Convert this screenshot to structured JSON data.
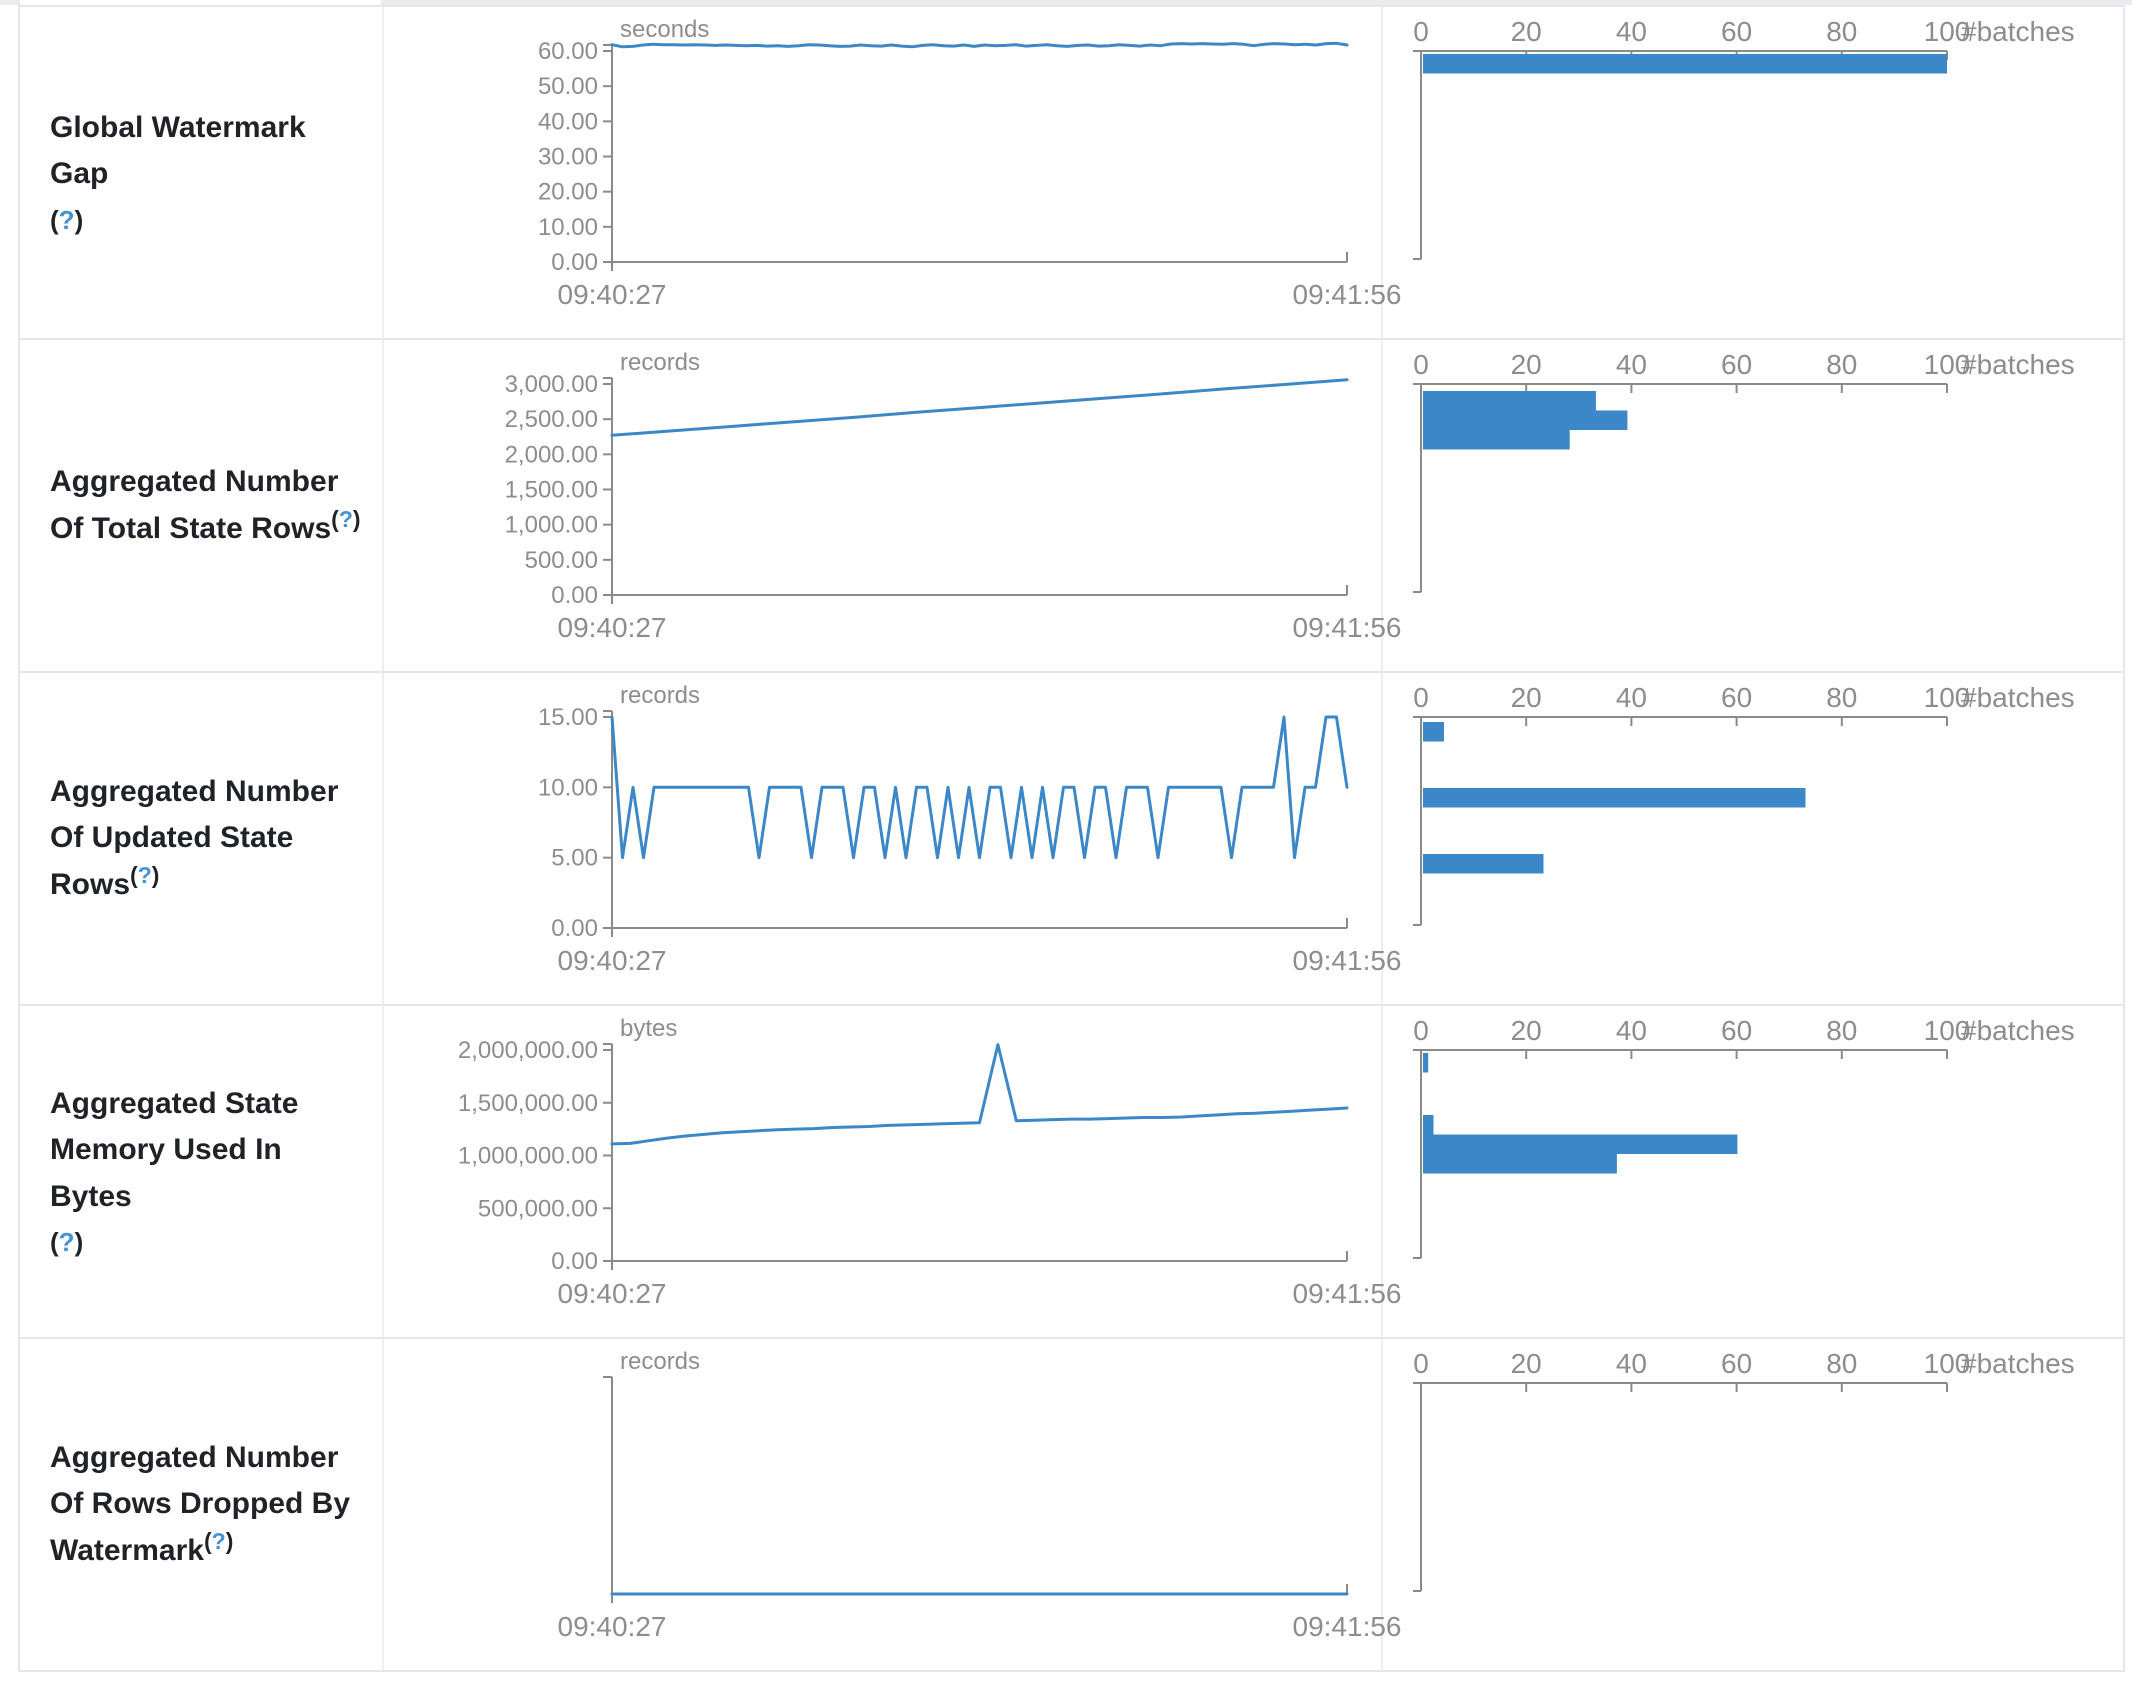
{
  "colors": {
    "accent_blue": "#3c87c8",
    "help_blue": "#4292d6",
    "axis_gray": "#8a8a8a",
    "tick_label_gray": "#8d8d8d",
    "title_color": "#1f2328",
    "table_border": "#e3e6ea",
    "top_sliver_gray": "#e9ebee",
    "background": "#ffffff"
  },
  "help": {
    "open": "(",
    "q": "?",
    "close": ")"
  },
  "x_axis": {
    "start_label": "09:40:27",
    "end_label": "09:41:56"
  },
  "histogram_axis": {
    "tick_labels": [
      "0",
      "20",
      "40",
      "60",
      "80",
      "100"
    ],
    "max": 100,
    "unit_label": "#batches"
  },
  "rows": [
    {
      "title": "Global Watermark Gap",
      "help_inline": false,
      "chart_data": {
        "type": "line",
        "title": "Global Watermark Gap",
        "unit": "seconds",
        "x_range": [
          "09:40:27",
          "09:41:56"
        ],
        "y_top": 60,
        "y_ticks": [
          {
            "label": "60.00",
            "v": 60
          },
          {
            "label": "50.00",
            "v": 50
          },
          {
            "label": "40.00",
            "v": 40
          },
          {
            "label": "30.00",
            "v": 30
          },
          {
            "label": "20.00",
            "v": 20
          },
          {
            "label": "10.00",
            "v": 10
          },
          {
            "label": "0.00",
            "v": 0
          }
        ],
        "values": [
          61.8,
          61.2,
          61.3,
          61.7,
          61.9,
          61.8,
          61.8,
          61.7,
          61.8,
          61.7,
          61.6,
          61.7,
          61.6,
          61.5,
          61.6,
          61.4,
          61.5,
          61.3,
          61.5,
          61.8,
          61.7,
          61.5,
          61.3,
          61.4,
          61.7,
          61.5,
          61.4,
          61.7,
          61.4,
          61.2,
          61.6,
          61.8,
          61.5,
          61.4,
          61.7,
          61.3,
          61.7,
          61.5,
          61.6,
          61.8,
          61.4,
          61.6,
          61.8,
          61.5,
          61.3,
          61.6,
          61.7,
          61.4,
          61.5,
          61.8,
          61.6,
          61.4,
          61.7,
          61.5,
          62.0,
          62.1,
          62.0,
          62.1,
          62.0,
          61.9,
          62.1,
          61.9,
          61.5,
          61.9,
          62.1,
          62.0,
          61.8,
          61.9,
          61.7,
          62.1,
          62.2,
          61.7
        ]
      },
      "histogram_data": {
        "type": "bar",
        "unit": "#batches",
        "x_ticks": [
          0,
          20,
          40,
          60,
          80,
          100
        ],
        "bars": [
          {
            "approx_value": 61.5,
            "count": 100,
            "top": 2
          }
        ]
      }
    },
    {
      "title": "Aggregated Number Of Total State Rows",
      "help_inline": true,
      "chart_data": {
        "type": "line",
        "title": "Aggregated Number Of Total State Rows",
        "unit": "records",
        "x_range": [
          "09:40:27",
          "09:41:56"
        ],
        "y_top": 3000,
        "y_ticks": [
          {
            "label": "3,000.00",
            "v": 3000
          },
          {
            "label": "2,500.00",
            "v": 2500
          },
          {
            "label": "2,000.00",
            "v": 2000
          },
          {
            "label": "1,500.00",
            "v": 1500
          },
          {
            "label": "1,000.00",
            "v": 1000
          },
          {
            "label": "500.00",
            "v": 500
          },
          {
            "label": "0.00",
            "v": 0
          }
        ],
        "values": [
          2270,
          2335,
          2400,
          2465,
          2530,
          2600,
          2665,
          2730,
          2795,
          2860,
          2930,
          2995,
          3060
        ]
      },
      "histogram_data": {
        "type": "bar",
        "unit": "#batches",
        "x_ticks": [
          0,
          20,
          40,
          60,
          80,
          100
        ],
        "bars": [
          {
            "approx_value": 3000,
            "count": 33,
            "top": 6
          },
          {
            "approx_value": 2800,
            "count": 39,
            "top": 25.5
          },
          {
            "approx_value": 2450,
            "count": 28,
            "top": 45
          }
        ]
      }
    },
    {
      "title": "Aggregated Number Of Updated State Rows",
      "help_inline": true,
      "chart_data": {
        "type": "line",
        "title": "Aggregated Number Of Updated State Rows",
        "unit": "records",
        "x_range": [
          "09:40:27",
          "09:41:56"
        ],
        "y_top": 15,
        "y_ticks": [
          {
            "label": "15.00",
            "v": 15
          },
          {
            "label": "10.00",
            "v": 10
          },
          {
            "label": "5.00",
            "v": 5
          },
          {
            "label": "0.00",
            "v": 0
          }
        ],
        "values": [
          15,
          5,
          10,
          5,
          10,
          10,
          10,
          10,
          10,
          10,
          10,
          10,
          10,
          10,
          5,
          10,
          10,
          10,
          10,
          5,
          10,
          10,
          10,
          5,
          10,
          10,
          5,
          10,
          5,
          10,
          10,
          5,
          10,
          5,
          10,
          5,
          10,
          10,
          5,
          10,
          5,
          10,
          5,
          10,
          10,
          5,
          10,
          10,
          5,
          10,
          10,
          10,
          5,
          10,
          10,
          10,
          10,
          10,
          10,
          5,
          10,
          10,
          10,
          10,
          15,
          5,
          10,
          10,
          15,
          15,
          10
        ]
      },
      "histogram_data": {
        "type": "bar",
        "unit": "#batches",
        "x_ticks": [
          0,
          20,
          40,
          60,
          80,
          100
        ],
        "bars": [
          {
            "approx_value": 15,
            "count": 4,
            "top": 4
          },
          {
            "approx_value": 10,
            "count": 73,
            "top": 70
          },
          {
            "approx_value": 5,
            "count": 23,
            "top": 136
          }
        ]
      }
    },
    {
      "title": "Aggregated State Memory Used In Bytes",
      "help_inline": false,
      "chart_data": {
        "type": "line",
        "title": "Aggregated State Memory Used In Bytes",
        "unit": "bytes",
        "x_range": [
          "09:40:27",
          "09:41:56"
        ],
        "y_top": 2000000,
        "y_ticks": [
          {
            "label": "2,000,000.00",
            "v": 2000000
          },
          {
            "label": "1,500,000.00",
            "v": 1500000
          },
          {
            "label": "1,000,000.00",
            "v": 1000000
          },
          {
            "label": "500,000.00",
            "v": 500000
          },
          {
            "label": "0.00",
            "v": 0
          }
        ],
        "values": [
          1110000,
          1115000,
          1140000,
          1165000,
          1185000,
          1200000,
          1215000,
          1225000,
          1235000,
          1245000,
          1250000,
          1255000,
          1265000,
          1270000,
          1275000,
          1285000,
          1290000,
          1295000,
          1300000,
          1305000,
          1310000,
          2050000,
          1330000,
          1335000,
          1340000,
          1345000,
          1345000,
          1350000,
          1355000,
          1360000,
          1360000,
          1365000,
          1375000,
          1385000,
          1395000,
          1400000,
          1410000,
          1420000,
          1430000,
          1440000,
          1450000
        ]
      },
      "histogram_data": {
        "type": "bar",
        "unit": "#batches",
        "x_ticks": [
          0,
          20,
          40,
          60,
          80,
          100
        ],
        "bars": [
          {
            "approx_value": 2050000,
            "count": 1,
            "top": 2
          },
          {
            "approx_value": 1450000,
            "count": 2,
            "top": 64
          },
          {
            "approx_value": 1300000,
            "count": 60,
            "top": 83.5
          },
          {
            "approx_value": 1150000,
            "count": 37,
            "top": 103
          }
        ]
      }
    },
    {
      "title": "Aggregated Number Of Rows Dropped By Watermark",
      "help_inline": true,
      "chart_data": {
        "type": "line",
        "title": "Aggregated Number Of Rows Dropped By Watermark",
        "unit": "records",
        "x_range": [
          "09:40:27",
          "09:41:56"
        ],
        "y_top": null,
        "y_ticks": [],
        "values": [
          0,
          0
        ]
      },
      "histogram_data": {
        "type": "bar",
        "unit": "#batches",
        "x_ticks": [
          0,
          20,
          40,
          60,
          80,
          100
        ],
        "bars": []
      }
    }
  ]
}
